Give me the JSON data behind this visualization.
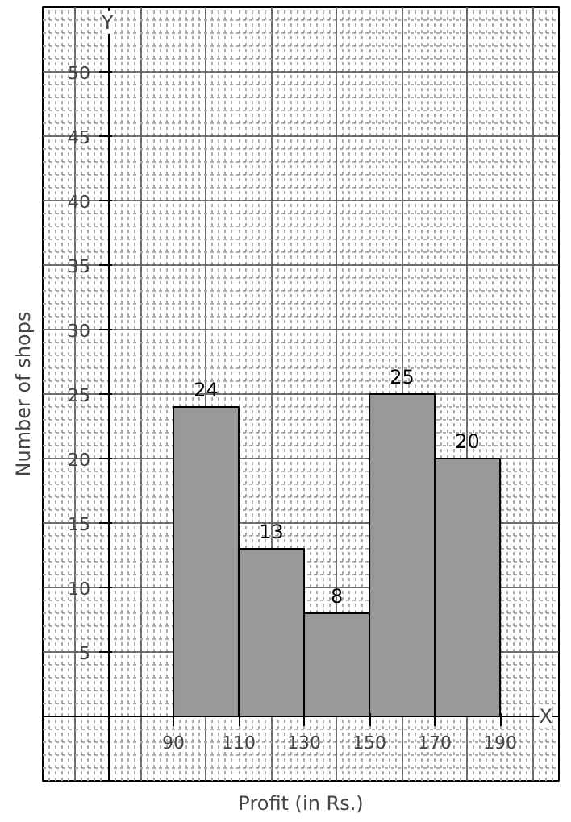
{
  "chart_data": {
    "type": "histogram",
    "xlabel": "Profit (in Rs.)",
    "ylabel": "Number of shops",
    "bins": [
      90,
      110,
      130,
      150,
      170,
      190
    ],
    "values": [
      24,
      13,
      8,
      25,
      20
    ],
    "color": "#999999",
    "xlim": [
      50,
      208
    ],
    "ylim": [
      -5,
      55
    ],
    "xticks": [
      90,
      110,
      130,
      150,
      170,
      190
    ],
    "yticks": [
      {
        "value": 0,
        "label": null
      },
      5,
      10,
      15,
      20,
      25,
      30,
      35,
      40,
      45,
      50
    ],
    "annotations": [
      "X",
      "Y"
    ],
    "data_labels": true,
    "grid": true
  }
}
